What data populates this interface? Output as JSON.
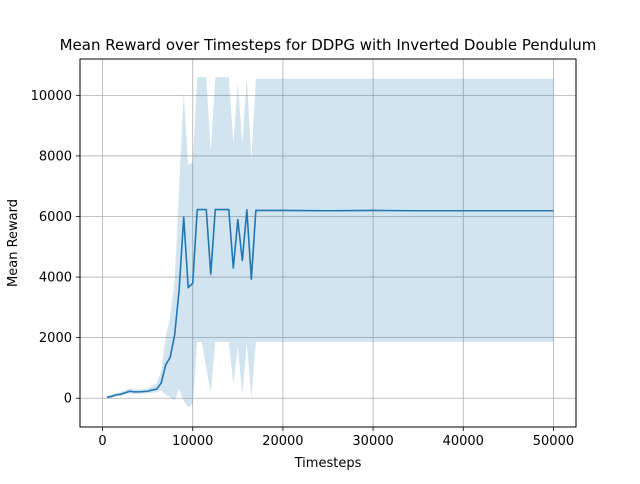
{
  "chart_data": {
    "type": "line",
    "title": "Mean Reward over Timesteps for DDPG with Inverted Double Pendulum",
    "xlabel": "Timesteps",
    "ylabel": "Mean Reward",
    "xlim": [
      -2500,
      52500
    ],
    "ylim": [
      -950,
      11200
    ],
    "xticks": [
      0,
      10000,
      20000,
      30000,
      40000,
      50000
    ],
    "xtick_labels": [
      "0",
      "10000",
      "20000",
      "30000",
      "40000",
      "50000"
    ],
    "yticks": [
      0,
      2000,
      4000,
      6000,
      8000,
      10000
    ],
    "ytick_labels": [
      "0",
      "2000",
      "4000",
      "6000",
      "8000",
      "10000"
    ],
    "grid": true,
    "colors": {
      "line": "#1f77b4",
      "band": "#1f77b4",
      "grid": "#b0b0b0"
    },
    "series": [
      {
        "x": [
          500,
          1000,
          1500,
          2000,
          2500,
          3000,
          3500,
          4000,
          4500,
          5000,
          5500,
          6000,
          6500,
          7000,
          7500,
          8000,
          8500,
          9000,
          9500,
          10000,
          10500,
          11000,
          11500,
          12000,
          12500,
          13000,
          13500,
          14000,
          14500,
          15000,
          15500,
          16000,
          16500,
          17000,
          18000,
          20000,
          25000,
          30000,
          35000,
          40000,
          45000,
          50000
        ],
        "y": [
          30,
          60,
          110,
          130,
          180,
          230,
          210,
          210,
          220,
          230,
          270,
          300,
          500,
          1100,
          1350,
          2100,
          3600,
          5980,
          3650,
          3800,
          6230,
          6230,
          6230,
          4100,
          6230,
          6230,
          6230,
          6230,
          4300,
          5900,
          4550,
          6220,
          3930,
          6200,
          6200,
          6200,
          6190,
          6200,
          6190,
          6190,
          6190,
          6190
        ],
        "lower": [
          0,
          20,
          60,
          80,
          120,
          150,
          140,
          140,
          150,
          160,
          180,
          200,
          250,
          120,
          30,
          -80,
          300,
          -100,
          -300,
          -200,
          1860,
          1860,
          1000,
          200,
          1860,
          1860,
          1860,
          1860,
          500,
          1700,
          100,
          1860,
          0,
          1860,
          1860,
          1860,
          1860,
          1860,
          1860,
          1860,
          1860,
          1860
        ],
        "upper": [
          80,
          120,
          170,
          200,
          260,
          330,
          300,
          290,
          300,
          320,
          400,
          500,
          900,
          2000,
          2700,
          3900,
          7000,
          10100,
          7700,
          7800,
          10600,
          10600,
          10600,
          8100,
          10600,
          10600,
          10600,
          10600,
          8400,
          10400,
          8400,
          10600,
          7900,
          10550,
          10550,
          10550,
          10550,
          10550,
          10550,
          10550,
          10550,
          10550
        ]
      }
    ]
  }
}
